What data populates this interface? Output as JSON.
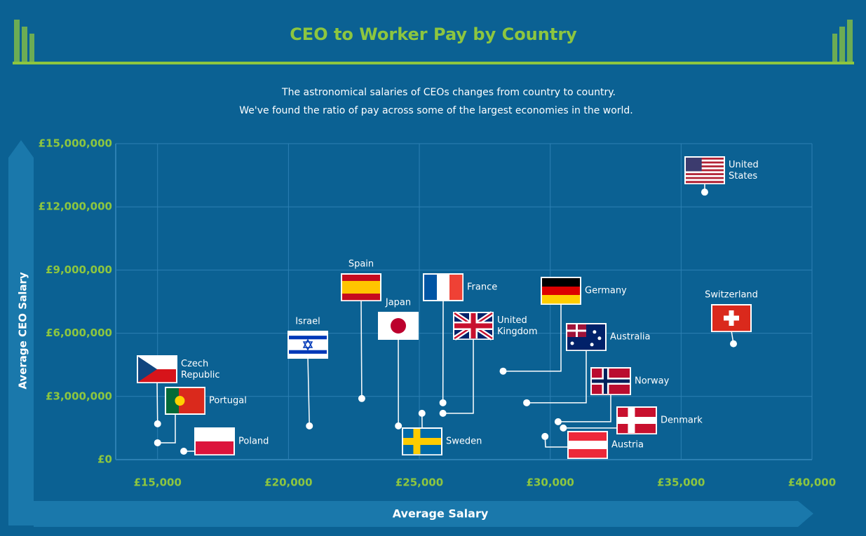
{
  "chart_data": {
    "type": "scatter",
    "title": "CEO to Worker Pay by Country",
    "subtitle": [
      "The astronomical salaries of CEOs changes from country to country.",
      "We've found the ratio of pay across some of the largest economies in the world."
    ],
    "x_label": "Average Salary",
    "y_label": "Average CEO Salary",
    "xlim": [
      13400,
      40000
    ],
    "ylim": [
      0,
      15000000
    ],
    "xticks": [
      {
        "value": 15000,
        "label": "£15,000"
      },
      {
        "value": 20000,
        "label": "£20,000"
      },
      {
        "value": 25000,
        "label": "£25,000"
      },
      {
        "value": 30000,
        "label": "£30,000"
      },
      {
        "value": 35000,
        "label": "£35,000"
      },
      {
        "value": 40000,
        "label": "£40,000"
      }
    ],
    "yticks": [
      {
        "value": 0,
        "label": "£0"
      },
      {
        "value": 3000000,
        "label": "£3,000,000"
      },
      {
        "value": 6000000,
        "label": "£6,000,000"
      },
      {
        "value": 9000000,
        "label": "£9,000,000"
      },
      {
        "value": 12000000,
        "label": "£12,000,000"
      },
      {
        "value": 15000000,
        "label": "£15,000,000"
      }
    ],
    "grid": true,
    "series": [
      {
        "name": "Czech Republic",
        "x": [
          15000
        ],
        "values": [
          1700000
        ]
      },
      {
        "name": "Portugal",
        "x": [
          15000
        ],
        "values": [
          800000
        ]
      },
      {
        "name": "Poland",
        "x": [
          16000
        ],
        "values": [
          400000
        ]
      },
      {
        "name": "Israel",
        "x": [
          20800
        ],
        "values": [
          1600000
        ]
      },
      {
        "name": "Spain",
        "x": [
          22800
        ],
        "values": [
          2900000
        ]
      },
      {
        "name": "Japan",
        "x": [
          24200
        ],
        "values": [
          1600000
        ]
      },
      {
        "name": "Sweden",
        "x": [
          25100
        ],
        "values": [
          2200000
        ]
      },
      {
        "name": "France",
        "x": [
          25900
        ],
        "values": [
          2700000
        ]
      },
      {
        "name": "United Kingdom",
        "x": [
          25900
        ],
        "values": [
          2200000
        ]
      },
      {
        "name": "Germany",
        "x": [
          28200
        ],
        "values": [
          4200000
        ]
      },
      {
        "name": "Australia",
        "x": [
          29100
        ],
        "values": [
          2700000
        ]
      },
      {
        "name": "Norway",
        "x": [
          30300
        ],
        "values": [
          1800000
        ]
      },
      {
        "name": "Denmark",
        "x": [
          30500
        ],
        "values": [
          1500000
        ]
      },
      {
        "name": "Austria",
        "x": [
          29800
        ],
        "values": [
          1100000
        ]
      },
      {
        "name": "Switzerland",
        "x": [
          37000
        ],
        "values": [
          5500000
        ]
      },
      {
        "name": "United States",
        "x": [
          35900
        ],
        "values": [
          12700000
        ]
      }
    ]
  }
}
